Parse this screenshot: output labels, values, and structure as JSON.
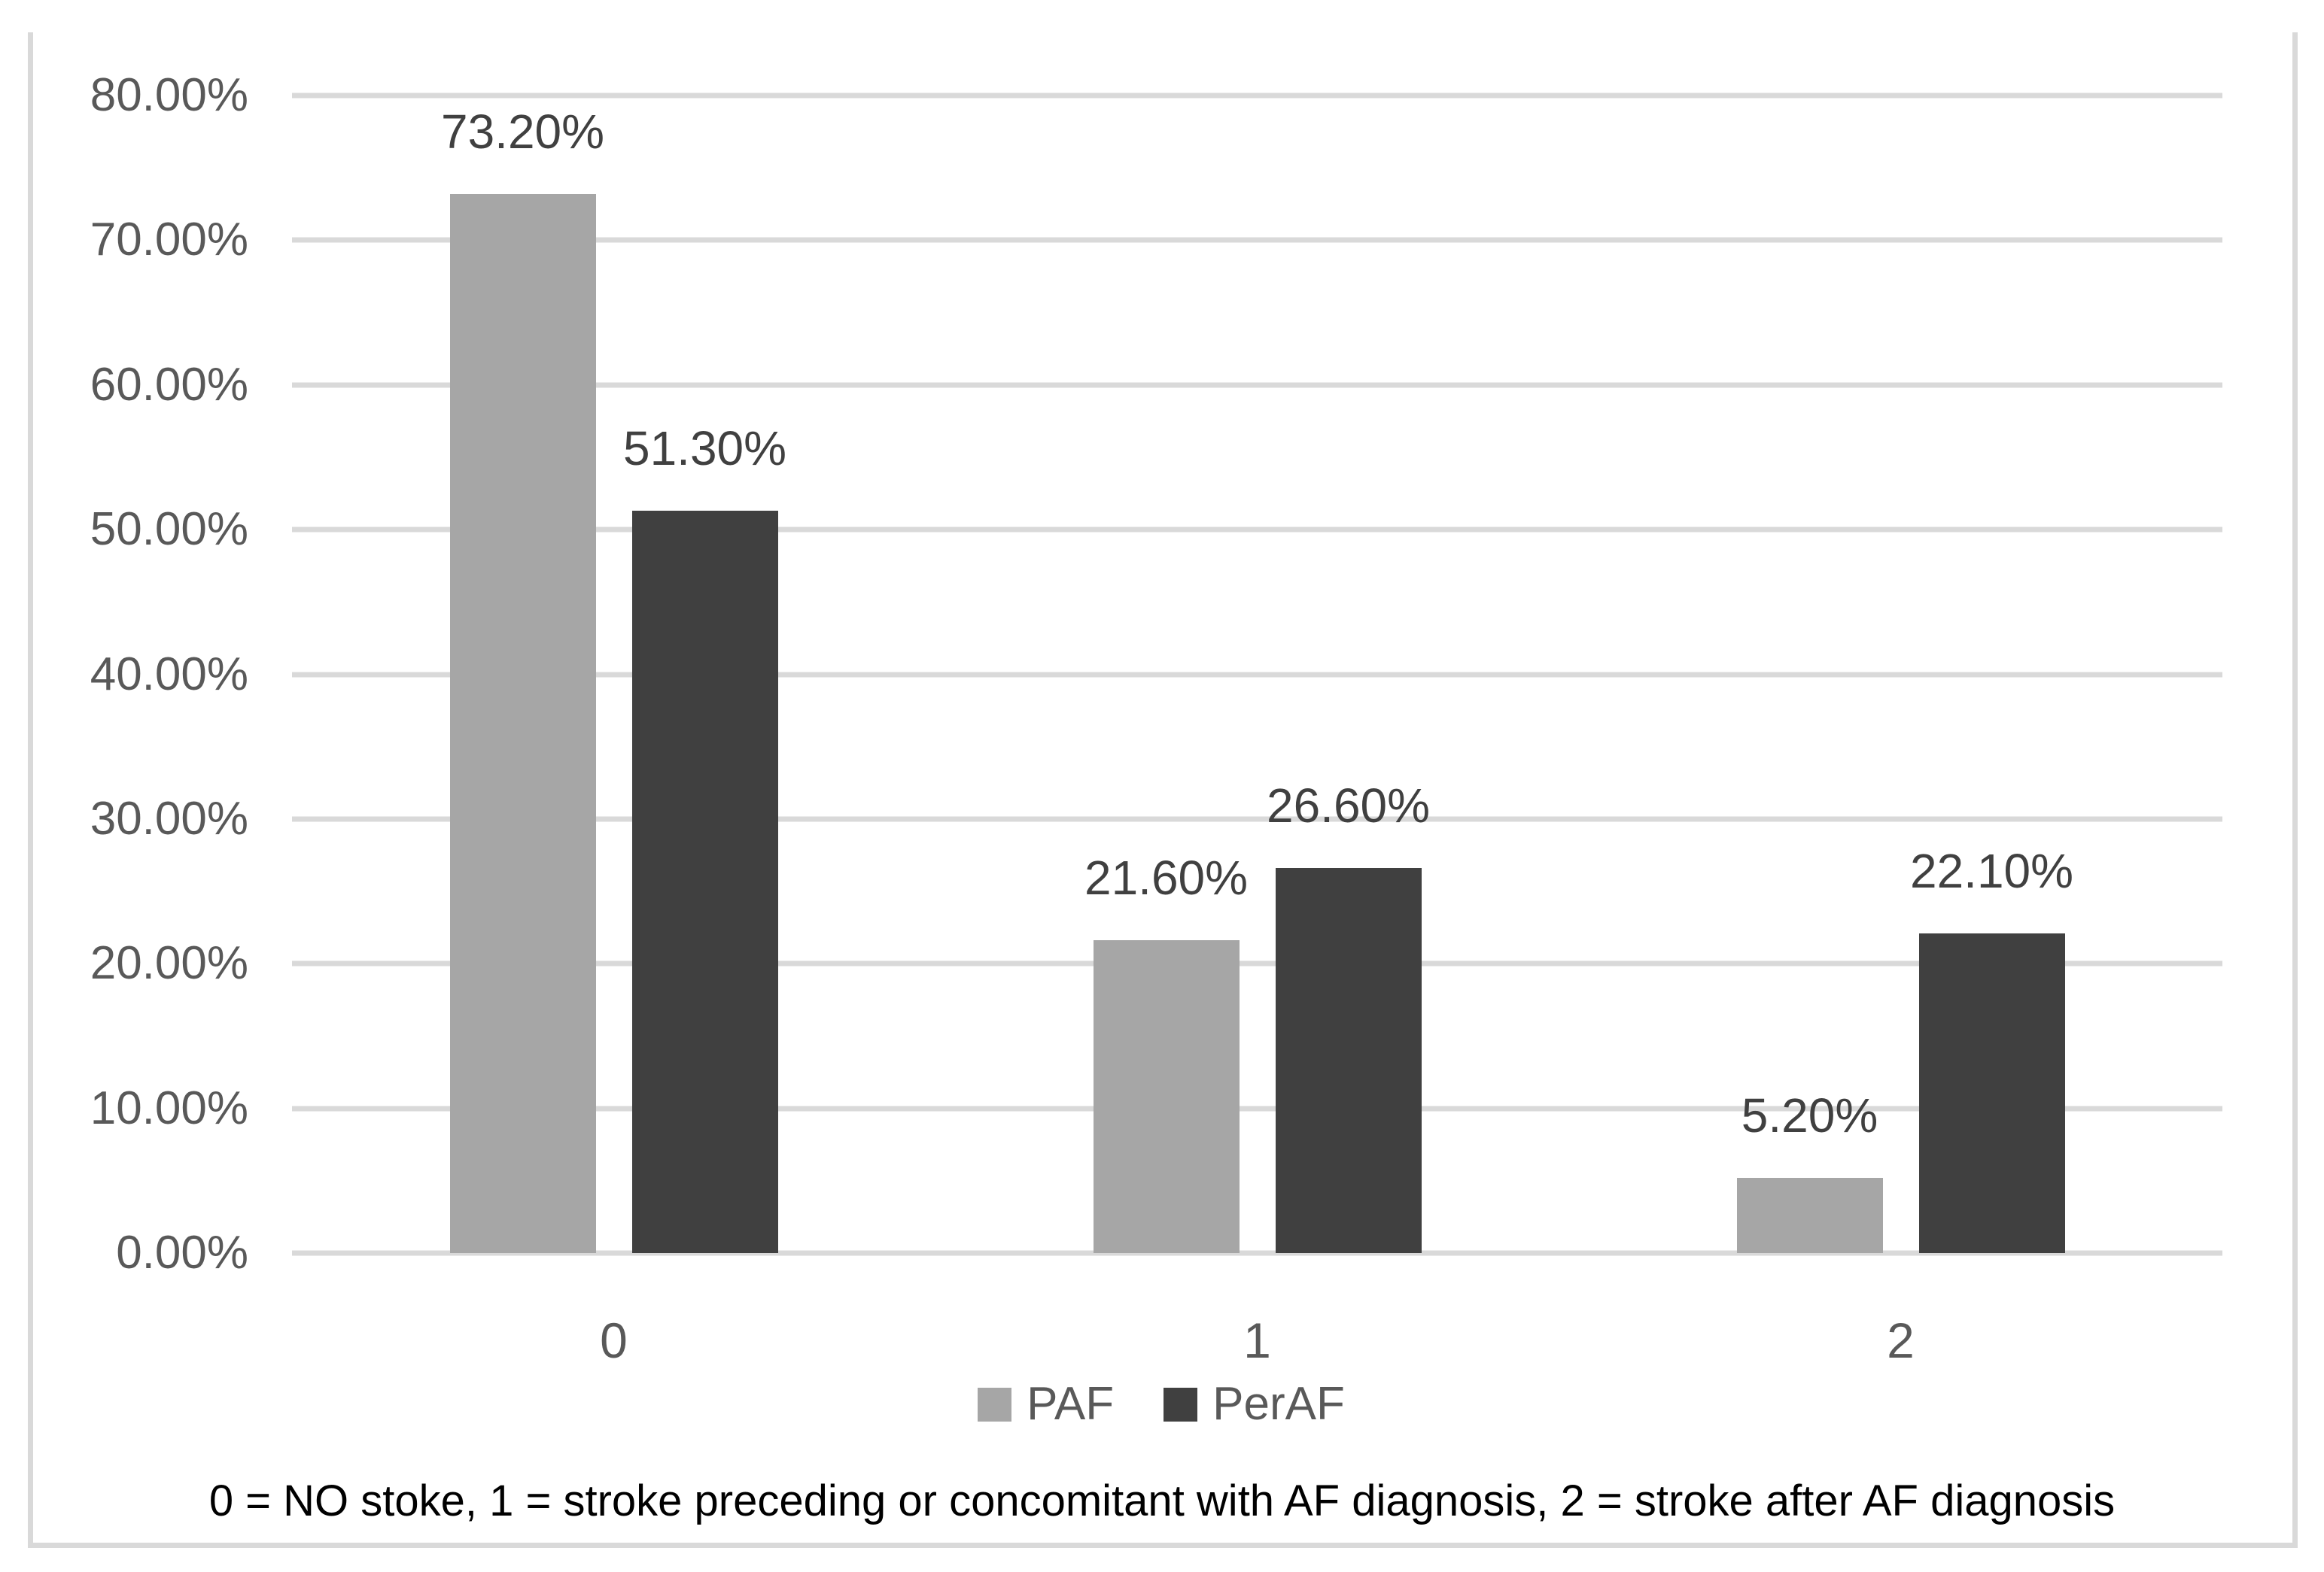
{
  "chart_data": {
    "type": "bar",
    "categories": [
      "0",
      "1",
      "2"
    ],
    "series": [
      {
        "name": "PAF",
        "color": "#a6a6a6",
        "values": [
          73.2,
          21.6,
          5.2
        ],
        "data_labels": [
          "73.20%",
          "21.60%",
          "5.20%"
        ]
      },
      {
        "name": "PerAF",
        "color": "#404040",
        "values": [
          51.3,
          26.6,
          22.1
        ],
        "data_labels": [
          "51.30%",
          "26.60%",
          "22.10%"
        ]
      }
    ],
    "y_axis": {
      "min": 0,
      "max": 80,
      "step": 10,
      "ticks": [
        0,
        10,
        20,
        30,
        40,
        50,
        60,
        70,
        80
      ],
      "tick_labels": [
        "0.00%",
        "10.00%",
        "20.00%",
        "30.00%",
        "40.00%",
        "50.00%",
        "60.00%",
        "70.00%",
        "80.00%"
      ]
    },
    "grid": true,
    "legend_position": "bottom",
    "caption": "0 = NO stoke, 1 = stroke preceding or concomitant with AF diagnosis, 2 = stroke after AF diagnosis"
  },
  "colors": {
    "frame_border": "#d9d9d9",
    "gridline": "#d9d9d9",
    "tick_label": "#595959",
    "data_label": "#404040",
    "caption": "#000000",
    "paf_bar": "#a6a6a6",
    "peraf_bar": "#404040"
  }
}
